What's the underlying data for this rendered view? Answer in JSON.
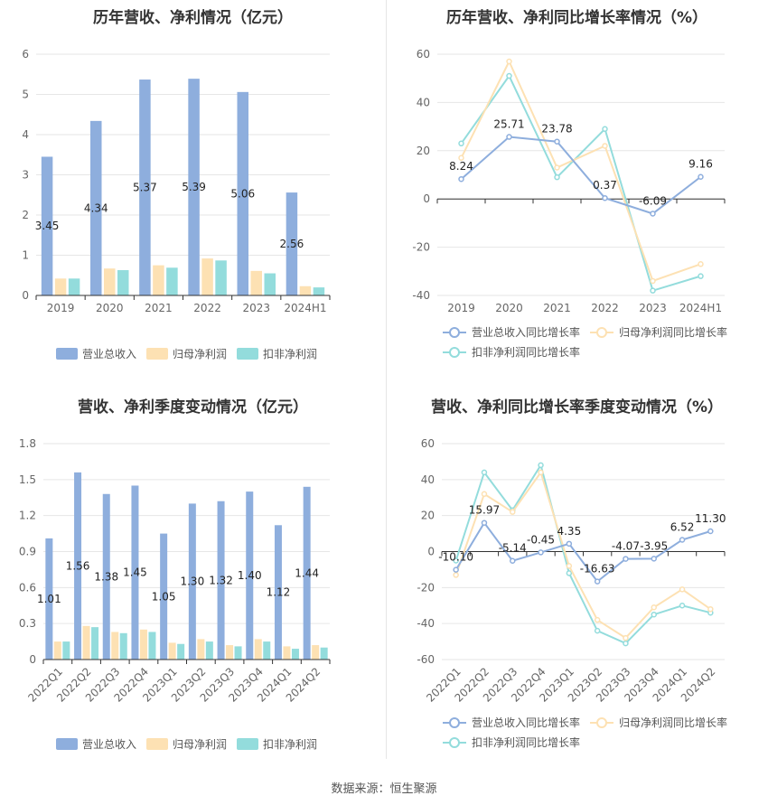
{
  "source": "数据来源：恒生聚源",
  "colors": {
    "revenue": "#8eaedd",
    "net_profit": "#fde1b3",
    "deducted_profit": "#93dcdc",
    "axis": "#333333",
    "grid": "#e6e6e6"
  },
  "chart_data": [
    {
      "type": "bar",
      "title": "历年营收、净利情况（亿元）",
      "categories": [
        "2019",
        "2020",
        "2021",
        "2022",
        "2023",
        "2024H1"
      ],
      "ylim": [
        0,
        6
      ],
      "yticks": [
        0,
        1,
        2,
        3,
        4,
        5,
        6
      ],
      "series": [
        {
          "name": "营业总收入",
          "values": [
            3.45,
            4.34,
            5.37,
            5.39,
            5.06,
            2.56
          ],
          "labels": [
            "3.45",
            "4.34",
            "5.37",
            "5.39",
            "5.06",
            "2.56"
          ]
        },
        {
          "name": "归母净利润",
          "values": [
            0.42,
            0.67,
            0.75,
            0.92,
            0.61,
            0.23
          ]
        },
        {
          "name": "扣非净利润",
          "values": [
            0.42,
            0.63,
            0.69,
            0.87,
            0.55,
            0.2
          ]
        }
      ],
      "legend": "bottom",
      "grid": true
    },
    {
      "type": "line",
      "title": "历年营收、净利同比增长率情况（%）",
      "categories": [
        "2019",
        "2020",
        "2021",
        "2022",
        "2023",
        "2024H1"
      ],
      "ylim": [
        -40,
        60
      ],
      "yticks": [
        -40,
        -20,
        0,
        20,
        40,
        60
      ],
      "series": [
        {
          "name": "营业总收入同比增长率",
          "values": [
            8.24,
            25.71,
            23.78,
            0.37,
            -6.09,
            9.16
          ],
          "labels": [
            "8.24",
            "25.71",
            "23.78",
            "0.37",
            "-6.09",
            "9.16"
          ]
        },
        {
          "name": "归母净利润同比增长率",
          "values": [
            17,
            57,
            13,
            22,
            -34,
            -27
          ]
        },
        {
          "name": "扣非净利润同比增长率",
          "values": [
            23,
            51,
            9,
            29,
            -38,
            -32
          ]
        }
      ],
      "legend": "bottom",
      "grid": true
    },
    {
      "type": "bar",
      "title": "营收、净利季度变动情况（亿元）",
      "categories": [
        "2022Q1",
        "2022Q2",
        "2022Q3",
        "2022Q4",
        "2023Q1",
        "2023Q2",
        "2023Q3",
        "2023Q4",
        "2024Q1",
        "2024Q2"
      ],
      "ylim": [
        0,
        1.8
      ],
      "yticks": [
        "0",
        "0.3",
        "0.6",
        "0.9",
        "1.2",
        "1.5",
        "1.8"
      ],
      "series": [
        {
          "name": "营业总收入",
          "values": [
            1.01,
            1.56,
            1.38,
            1.45,
            1.05,
            1.3,
            1.32,
            1.4,
            1.12,
            1.44
          ],
          "labels": [
            "1.01",
            "1.56",
            "1.38",
            "1.45",
            "1.05",
            "1.30",
            "1.32",
            "1.40",
            "1.12",
            "1.44"
          ]
        },
        {
          "name": "归母净利润",
          "values": [
            0.15,
            0.28,
            0.23,
            0.25,
            0.14,
            0.17,
            0.12,
            0.17,
            0.11,
            0.12
          ]
        },
        {
          "name": "扣非净利润",
          "values": [
            0.15,
            0.27,
            0.22,
            0.23,
            0.13,
            0.15,
            0.11,
            0.15,
            0.09,
            0.1
          ]
        }
      ],
      "legend": "bottom",
      "grid": true
    },
    {
      "type": "line",
      "title": "营收、净利同比增长率季度变动情况（%）",
      "categories": [
        "2022Q1",
        "2022Q2",
        "2022Q3",
        "2022Q4",
        "2023Q1",
        "2023Q2",
        "2023Q3",
        "2023Q4",
        "2024Q1",
        "2024Q2"
      ],
      "ylim": [
        -60,
        60
      ],
      "yticks": [
        -60,
        -40,
        -20,
        0,
        20,
        40,
        60
      ],
      "series": [
        {
          "name": "营业总收入同比增长率",
          "values": [
            -10.1,
            15.97,
            -5.14,
            -0.45,
            4.35,
            -16.63,
            -4.07,
            -3.95,
            6.52,
            11.3
          ],
          "labels": [
            "-10.10",
            "15.97",
            "-5.14",
            "-0.45",
            "4.35",
            "-16.63",
            "-4.07",
            "-3.95",
            "6.52",
            "11.30"
          ]
        },
        {
          "name": "归母净利润同比增长率",
          "values": [
            -13,
            32,
            22,
            44,
            -8,
            -38,
            -48,
            -31,
            -21,
            -32
          ]
        },
        {
          "name": "扣非净利润同比增长率",
          "values": [
            -5,
            44,
            23,
            48,
            -12,
            -44,
            -51,
            -35,
            -30,
            -34
          ]
        }
      ],
      "legend": "bottom",
      "grid": true
    }
  ]
}
